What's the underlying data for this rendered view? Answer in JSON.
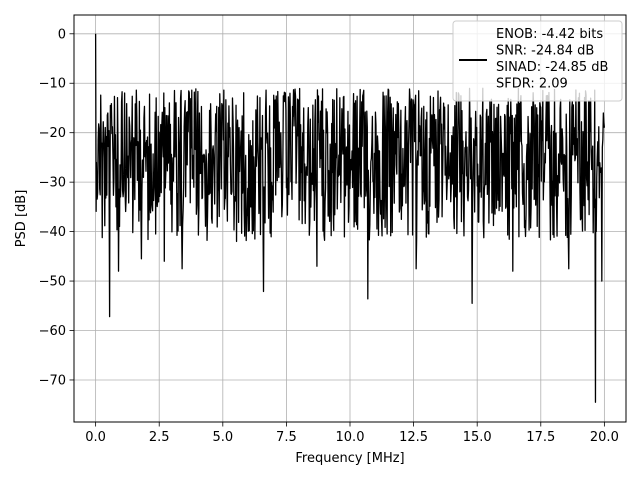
{
  "chart_data": {
    "type": "line",
    "title": "",
    "xlabel": "Frequency [MHz]",
    "ylabel": "PSD [dB]",
    "xlim": [
      -0.85,
      20.85
    ],
    "ylim": [
      -78.5,
      3.8
    ],
    "xticks": [
      0.0,
      2.5,
      5.0,
      7.5,
      10.0,
      12.5,
      15.0,
      17.5,
      20.0
    ],
    "xtick_labels": [
      "0.0",
      "2.5",
      "5.0",
      "7.5",
      "10.0",
      "12.5",
      "15.0",
      "17.5",
      "20.0"
    ],
    "yticks": [
      0,
      -10,
      -20,
      -30,
      -40,
      -50,
      -60,
      -70
    ],
    "ytick_labels": [
      "0",
      "−10",
      "−20",
      "−30",
      "−40",
      "−50",
      "−60",
      "−70"
    ],
    "grid": true,
    "legend_placement": "upper-right",
    "legend_lines": [
      "ENOB: -4.42 bits",
      "SNR: -24.84 dB",
      "SINAD: -24.85 dB",
      "SFDR: 2.09"
    ],
    "line_color": "#000000",
    "series": [
      {
        "name": "",
        "color": "#000000",
        "x_range": [
          0,
          20
        ],
        "points": 1000,
        "typical_band_db": [
          -10,
          -36
        ],
        "peak": [
          0.0,
          0.0
        ],
        "notable_dips": [
          [
            0.55,
            -57.2
          ],
          [
            0.9,
            -48.0
          ],
          [
            1.8,
            -45.5
          ],
          [
            2.7,
            -46.0
          ],
          [
            3.4,
            -47.5
          ],
          [
            6.6,
            -52.1
          ],
          [
            8.7,
            -47.0
          ],
          [
            10.7,
            -53.6
          ],
          [
            12.6,
            -47.5
          ],
          [
            14.8,
            -54.5
          ],
          [
            16.4,
            -48.0
          ],
          [
            18.6,
            -47.5
          ],
          [
            19.65,
            -74.5
          ],
          [
            19.9,
            -50.0
          ]
        ]
      }
    ]
  }
}
